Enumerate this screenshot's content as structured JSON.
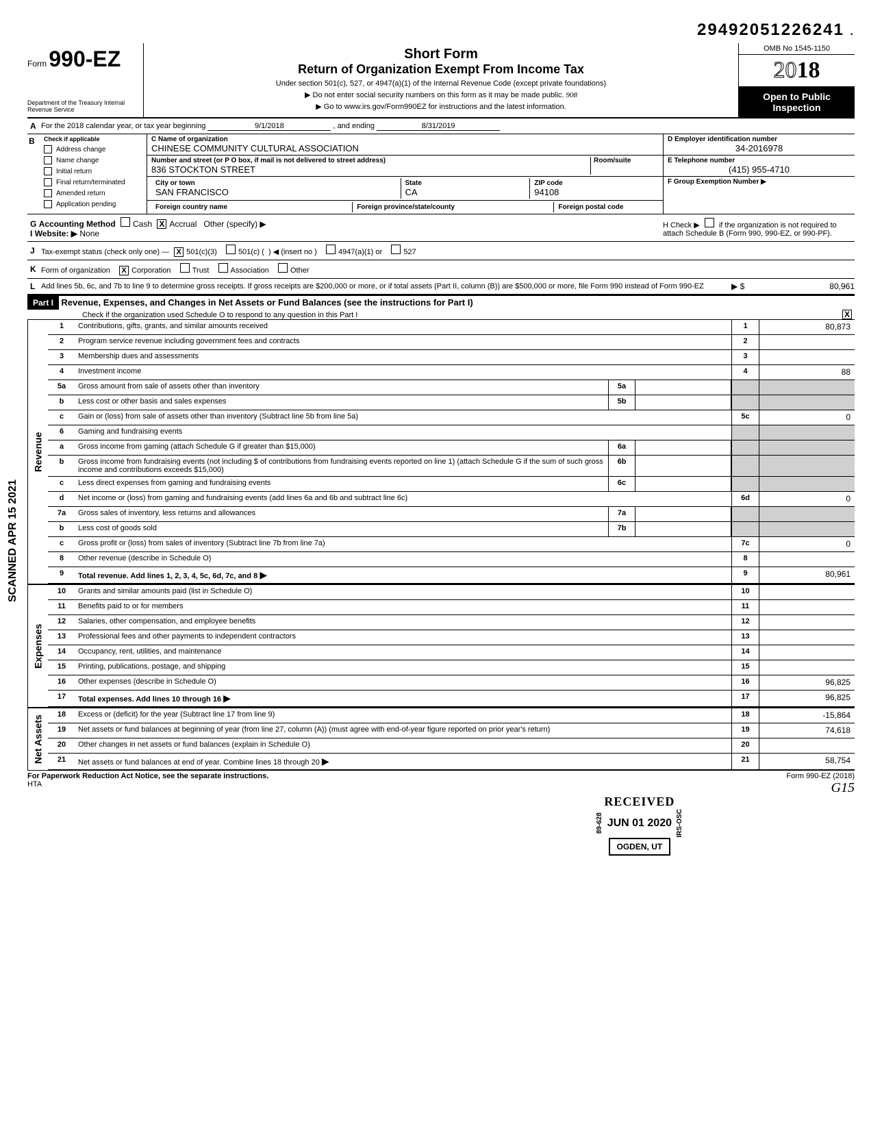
{
  "header": {
    "code": "29492051226241",
    "omb": "OMB No 1545-1150",
    "short_form": "Short Form",
    "return_title": "Return of Organization Exempt From Income Tax",
    "sub1": "Under section 501(c), 527, or 4947(a)(1) of the Internal Revenue Code (except private foundations)",
    "sub2": "▶ Do not enter social security numbers on this form as it may be made public.",
    "sub3": "▶ Go to www.irs.gov/Form990EZ for instructions and the latest information.",
    "form_word": "Form",
    "form_num": "990-EZ",
    "year": "2018",
    "open_public": "Open to Public Inspection",
    "dept": "Department of the Treasury Internal Revenue Service",
    "handwritten": "908"
  },
  "section_a": {
    "label": "For the 2018 calendar year, or tax year beginning",
    "begin": "9/1/2018",
    "and_ending": ", and ending",
    "end": "8/31/2019"
  },
  "section_b_checks": {
    "header": "Check if applicable",
    "address_change": "Address change",
    "name_change": "Name change",
    "initial_return": "Initial return",
    "final_return": "Final return/terminated",
    "amended_return": "Amended return",
    "application_pending": "Application pending"
  },
  "section_c": {
    "label": "C  Name of organization",
    "name": "CHINESE COMMUNITY CULTURAL ASSOCIATION",
    "addr_label": "Number and street (or P O box, if mail is not delivered to street address)",
    "room_label": "Room/suite",
    "street": "836 STOCKTON STREET",
    "city_label": "City or town",
    "city": "SAN FRANCISCO",
    "state_label": "State",
    "state": "CA",
    "zip_label": "ZIP code",
    "zip": "94108",
    "foreign_country": "Foreign country name",
    "foreign_province": "Foreign province/state/county",
    "foreign_postal": "Foreign postal code"
  },
  "section_d": {
    "label": "D  Employer identification number",
    "value": "34-2016978"
  },
  "section_e": {
    "label": "E  Telephone number",
    "value": "(415) 955-4710"
  },
  "section_f": {
    "label": "F  Group Exemption Number ▶"
  },
  "section_g": {
    "label": "Accounting Method",
    "cash": "Cash",
    "accrual": "Accrual",
    "other": "Other (specify) ▶"
  },
  "section_h": {
    "label": "H Check ▶",
    "text": "if the organization is not required to attach Schedule B (Form 990, 990-EZ, or 990-PF)."
  },
  "section_i": {
    "label": "Website: ▶",
    "value": "None"
  },
  "section_j": {
    "label": "Tax-exempt status (check only one) —",
    "opt1": "501(c)(3)",
    "opt2": "501(c) (",
    "opt2b": ") ◀ (insert no )",
    "opt3": "4947(a)(1) or",
    "opt4": "527"
  },
  "section_k": {
    "label": "Form of organization",
    "corp": "Corporation",
    "trust": "Trust",
    "assoc": "Association",
    "other": "Other"
  },
  "section_l": {
    "text": "Add lines 5b, 6c, and 7b to line 9 to determine gross receipts. If gross receipts are $200,000 or more, or if total assets (Part II, column (B)) are $500,000 or more, file Form 990 instead of Form 990-EZ",
    "arrow": "▶ $",
    "value": "80,961"
  },
  "part1": {
    "label": "Part I",
    "title": "Revenue, Expenses, and Changes in Net Assets or Fund Balances (see the instructions for Part I)",
    "check_text": "Check if the organization used Schedule O to respond to any question in this Part I"
  },
  "revenue": {
    "side": "Revenue",
    "rows": [
      {
        "n": "1",
        "desc": "Contributions, gifts, grants, and similar amounts received",
        "rn": "1",
        "val": "80,873"
      },
      {
        "n": "2",
        "desc": "Program service revenue including government fees and contracts",
        "rn": "2",
        "val": ""
      },
      {
        "n": "3",
        "desc": "Membership dues and assessments",
        "rn": "3",
        "val": ""
      },
      {
        "n": "4",
        "desc": "Investment income",
        "rn": "4",
        "val": "88"
      },
      {
        "n": "5a",
        "desc": "Gross amount from sale of assets other than inventory",
        "mn": "5a"
      },
      {
        "n": "b",
        "desc": "Less cost or other basis and sales expenses",
        "mn": "5b"
      },
      {
        "n": "c",
        "desc": "Gain or (loss) from sale of assets other than inventory (Subtract line 5b from line 5a)",
        "rn": "5c",
        "val": "0"
      },
      {
        "n": "6",
        "desc": "Gaming and fundraising events"
      },
      {
        "n": "a",
        "desc": "Gross income from gaming (attach Schedule G if greater than $15,000)",
        "mn": "6a"
      },
      {
        "n": "b",
        "desc": "Gross income from fundraising events (not including     $               of contributions from fundraising events reported on line 1) (attach Schedule G if the sum of such gross income and contributions exceeds $15,000)",
        "mn": "6b"
      },
      {
        "n": "c",
        "desc": "Less direct expenses from gaming and fundraising events",
        "mn": "6c"
      },
      {
        "n": "d",
        "desc": "Net income or (loss) from gaming and fundraising events (add lines 6a and 6b and subtract line 6c)",
        "rn": "6d",
        "val": "0"
      },
      {
        "n": "7a",
        "desc": "Gross sales of inventory, less returns and allowances",
        "mn": "7a"
      },
      {
        "n": "b",
        "desc": "Less cost of goods sold",
        "mn": "7b"
      },
      {
        "n": "c",
        "desc": "Gross profit or (loss) from sales of inventory (Subtract line 7b from line 7a)",
        "rn": "7c",
        "val": "0"
      },
      {
        "n": "8",
        "desc": "Other revenue (describe in Schedule O)",
        "rn": "8",
        "val": ""
      },
      {
        "n": "9",
        "desc": "Total revenue. Add lines 1, 2, 3, 4, 5c, 6d, 7c, and 8",
        "rn": "9",
        "val": "80,961",
        "arrow": true,
        "bold": true
      }
    ]
  },
  "expenses": {
    "side": "Expenses",
    "rows": [
      {
        "n": "10",
        "desc": "Grants and similar amounts paid (list in Schedule O)",
        "rn": "10"
      },
      {
        "n": "11",
        "desc": "Benefits paid to or for members",
        "rn": "11"
      },
      {
        "n": "12",
        "desc": "Salaries, other compensation, and employee benefits",
        "rn": "12"
      },
      {
        "n": "13",
        "desc": "Professional fees and other payments to independent contractors",
        "rn": "13"
      },
      {
        "n": "14",
        "desc": "Occupancy, rent, utilities, and maintenance",
        "rn": "14"
      },
      {
        "n": "15",
        "desc": "Printing, publications, postage, and shipping",
        "rn": "15"
      },
      {
        "n": "16",
        "desc": "Other expenses (describe in Schedule O)",
        "rn": "16",
        "val": "96,825"
      },
      {
        "n": "17",
        "desc": "Total expenses. Add lines 10 through 16",
        "rn": "17",
        "val": "96,825",
        "arrow": true,
        "bold": true
      }
    ]
  },
  "net_assets": {
    "side": "Net Assets",
    "rows": [
      {
        "n": "18",
        "desc": "Excess or (deficit) for the year (Subtract line 17 from line 9)",
        "rn": "18",
        "val": "-15,864"
      },
      {
        "n": "19",
        "desc": "Net assets or fund balances at beginning of year (from line 27, column (A)) (must agree with end-of-year figure reported on prior year's return)",
        "rn": "19",
        "val": "74,618"
      },
      {
        "n": "20",
        "desc": "Other changes in net assets or fund balances (explain in Schedule O)",
        "rn": "20"
      },
      {
        "n": "21",
        "desc": "Net assets or fund balances at end of year. Combine lines 18 through 20",
        "rn": "21",
        "val": "58,754",
        "arrow": true
      }
    ]
  },
  "received_stamp": {
    "received": "RECEIVED",
    "date": "JUN 01 2020",
    "location": "OGDEN, UT",
    "code1": "89-628",
    "code2": "IRS-OSC"
  },
  "scanned": "SCANNED APR 15 2021",
  "footer": {
    "left": "For Paperwork Reduction Act Notice, see the separate instructions.",
    "hta": "HTA",
    "right": "Form 990-EZ (2018)",
    "handwritten": "G15"
  }
}
